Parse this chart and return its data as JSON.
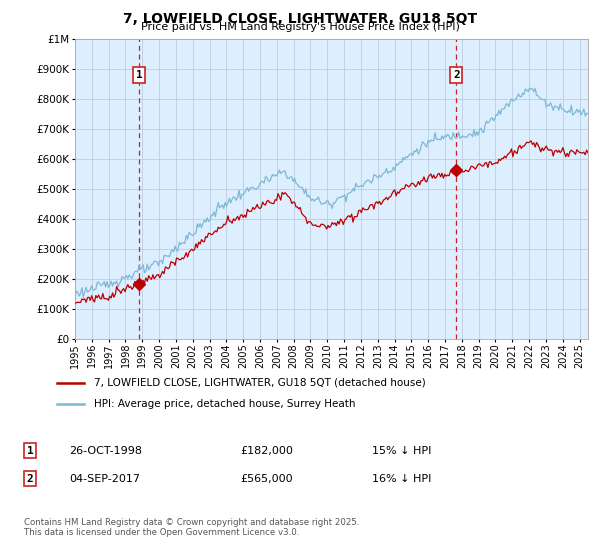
{
  "title": "7, LOWFIELD CLOSE, LIGHTWATER, GU18 5QT",
  "subtitle": "Price paid vs. HM Land Registry's House Price Index (HPI)",
  "legend_line1": "7, LOWFIELD CLOSE, LIGHTWATER, GU18 5QT (detached house)",
  "legend_line2": "HPI: Average price, detached house, Surrey Heath",
  "annotation1_label": "1",
  "annotation1_date": "26-OCT-1998",
  "annotation1_price": "£182,000",
  "annotation1_hpi": "15% ↓ HPI",
  "annotation2_label": "2",
  "annotation2_date": "04-SEP-2017",
  "annotation2_price": "£565,000",
  "annotation2_hpi": "16% ↓ HPI",
  "footer": "Contains HM Land Registry data © Crown copyright and database right 2025.\nThis data is licensed under the Open Government Licence v3.0.",
  "sale1_year": 1998.82,
  "sale1_value": 182000,
  "sale2_year": 2017.67,
  "sale2_value": 565000,
  "hpi_color": "#7eb8d4",
  "price_color": "#bb0000",
  "vline_color": "#cc2222",
  "ylim": [
    0,
    1000000
  ],
  "xlim_start": 1995,
  "xlim_end": 2025.5,
  "chart_bg_color": "#ddeeff",
  "background_color": "#ffffff",
  "grid_color": "#b8cfe0"
}
